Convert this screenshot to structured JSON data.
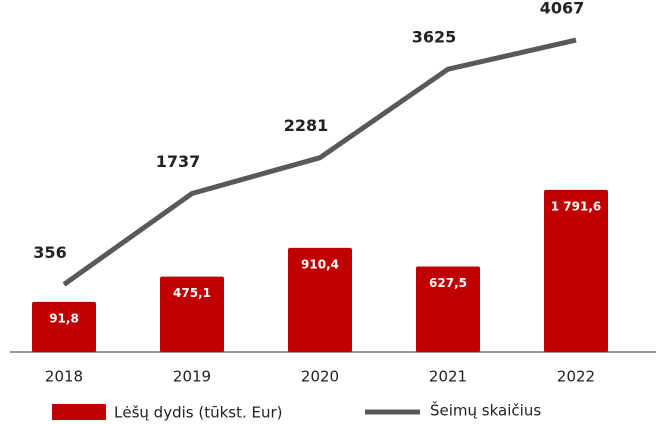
{
  "chart_data": {
    "type": "bar-line",
    "categories": [
      "2018",
      "2019",
      "2020",
      "2021",
      "2022"
    ],
    "ylim": [
      -670,
      4220
    ],
    "series": [
      {
        "name": "Lėšų dydis (tūkst. Eur)",
        "type": "bar",
        "color": "#c00000",
        "values": [
          91.8,
          475.1,
          910.4,
          627.5,
          1791.6
        ],
        "value_labels": [
          "91,8",
          "475,1",
          "910,4",
          "627,5",
          "1 791,6"
        ]
      },
      {
        "name": "Šeimų skaičius",
        "type": "line",
        "color": "#595959",
        "values": [
          356,
          1737,
          2281,
          3625,
          4067
        ]
      }
    ]
  }
}
